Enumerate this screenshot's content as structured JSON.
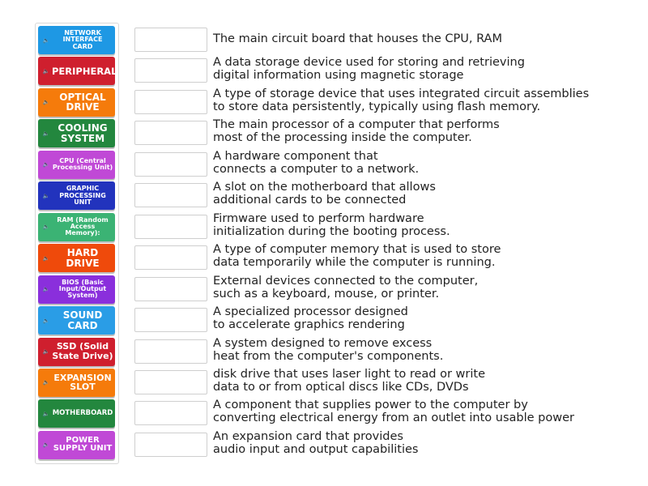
{
  "tiles": [
    {
      "label": "NETWORK INTERFACE CARD",
      "color": "#1e98e4",
      "size": 8
    },
    {
      "label": "PERIPHERAL",
      "color": "#cf1f2e",
      "size": 11.5
    },
    {
      "label": "OPTICAL DRIVE",
      "color": "#f57b0b",
      "size": 12
    },
    {
      "label": "COOLING SYSTEM",
      "color": "#23873e",
      "size": 12
    },
    {
      "label": "CPU (Central Processing Unit)",
      "color": "#c049d6",
      "size": 8
    },
    {
      "label": "GRAPHIC PROCESSING UNIT",
      "color": "#2233bd",
      "size": 8
    },
    {
      "label": "RAM (Random Access Memory):",
      "color": "#3bb374",
      "size": 8
    },
    {
      "label": "HARD DRIVE",
      "color": "#ef4a0b",
      "size": 12
    },
    {
      "label": "BIOS (Basic Input/Output System)",
      "color": "#8a2fdc",
      "size": 8
    },
    {
      "label": "SOUND CARD",
      "color": "#2a9de6",
      "size": 12
    },
    {
      "label": "SSD (Solid State Drive)",
      "color": "#cf1f2e",
      "size": 11
    },
    {
      "label": "EXPANSION SLOT",
      "color": "#f57b0b",
      "size": 11
    },
    {
      "label": "MOTHERBOARD",
      "color": "#23873e",
      "size": 8.5
    },
    {
      "label": "POWER SUPPLY UNIT",
      "color": "#c049d6",
      "size": 10
    }
  ],
  "descriptions": [
    "The main circuit board that houses the CPU, RAM",
    "A data storage device used for storing and retrieving\ndigital information using magnetic storage",
    "A type of storage device that uses integrated circuit assemblies\nto store data persistently, typically using flash memory.",
    "The main processor of a computer that performs\nmost of the processing inside the computer.",
    "A hardware component that\nconnects a computer to a network.",
    "A slot on the motherboard that allows\nadditional cards to be connected",
    "Firmware used to perform hardware\ninitialization during the booting process.",
    "A type of computer memory that is used to store\ndata temporarily while the computer is running.",
    "External devices connected to the computer,\nsuch as a keyboard, mouse, or printer.",
    "A specialized processor designed\nto accelerate graphics rendering",
    "A system designed to remove excess\nheat from the computer's components.",
    "disk drive that uses laser light to read or write\ndata to or from optical discs like CDs, DVDs",
    "A component that supplies power to the computer by\nconverting electrical energy from an outlet into usable power",
    "An expansion card that provides\naudio input and output capabilities"
  ],
  "speaker_icon": "🔈"
}
